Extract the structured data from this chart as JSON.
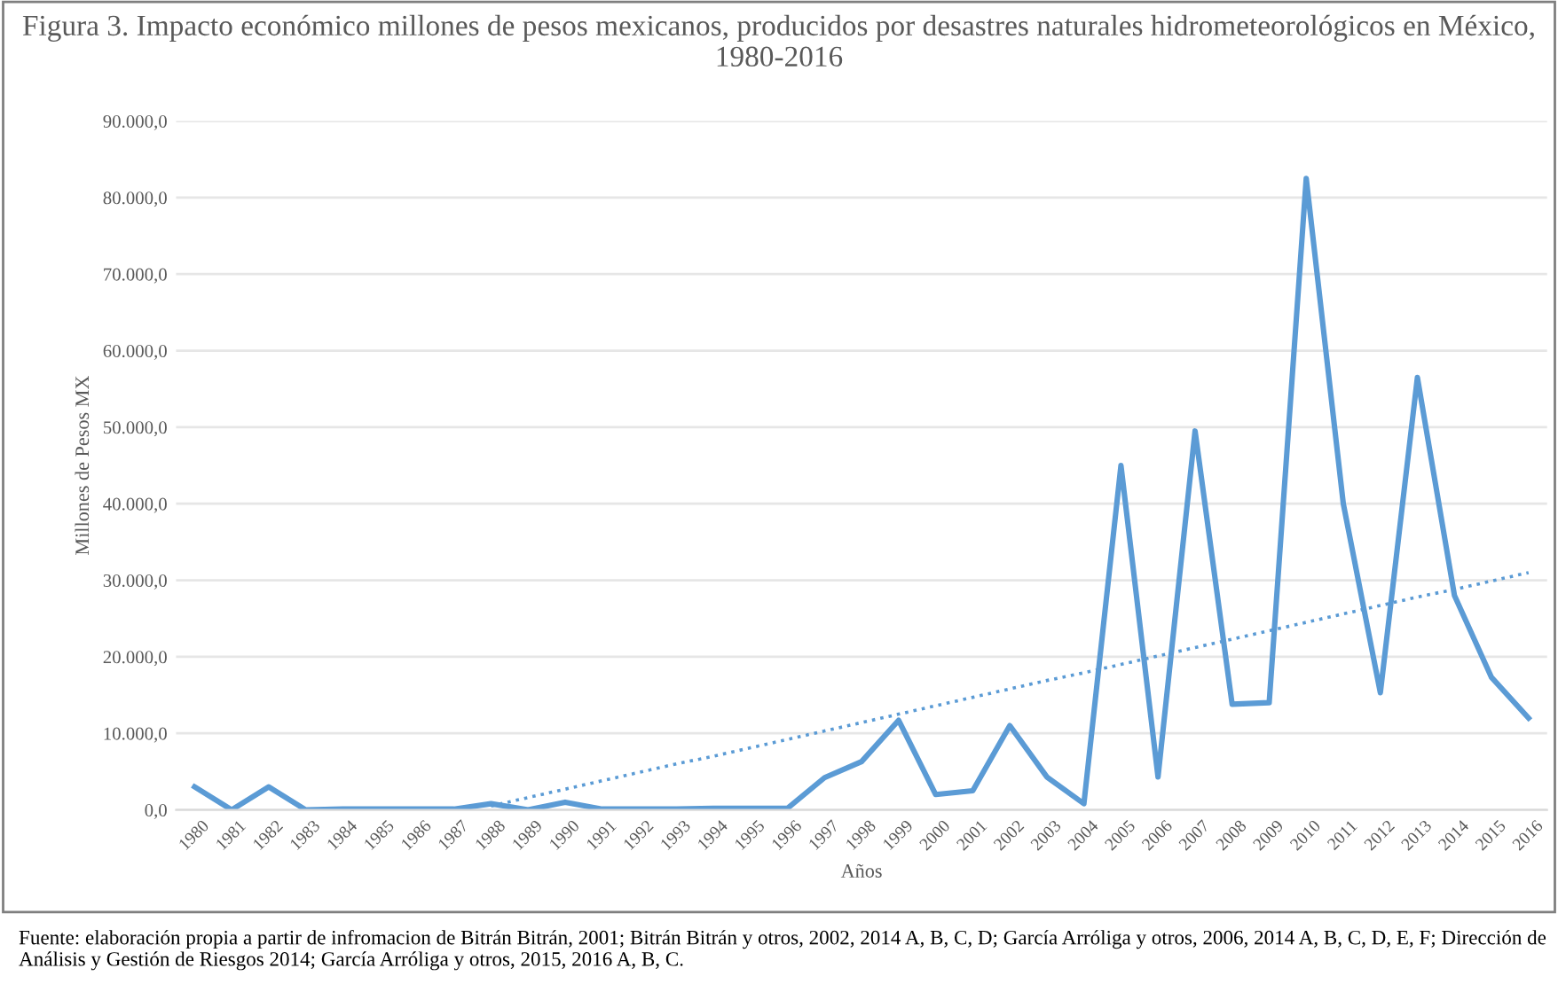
{
  "chart_data": {
    "type": "line",
    "title": "Figura 3. Impacto económico millones de pesos mexicanos, producidos por desastres naturales hidrometeorológicos en México, 1980-2016",
    "xlabel": "Años",
    "ylabel": "Millones de Pesos MX",
    "categories": [
      "1980",
      "1981",
      "1982",
      "1983",
      "1984",
      "1985",
      "1986",
      "1987",
      "1988",
      "1989",
      "1990",
      "1991",
      "1992",
      "1993",
      "1994",
      "1995",
      "1996",
      "1997",
      "1998",
      "1999",
      "2000",
      "2001",
      "2002",
      "2003",
      "2004",
      "2005",
      "2006",
      "2007",
      "2008",
      "2009",
      "2010",
      "2011",
      "2012",
      "2013",
      "2014",
      "2015",
      "2016"
    ],
    "series": [
      {
        "color": "#5b9bd5",
        "line_style": "solid",
        "values": [
          3000,
          0,
          3000,
          0,
          100,
          100,
          100,
          100,
          800,
          0,
          1000,
          100,
          100,
          100,
          200,
          200,
          200,
          4200,
          6300,
          11700,
          2000,
          2500,
          11000,
          4300,
          800,
          45000,
          4300,
          49500,
          13800,
          14000,
          82500,
          40000,
          15300,
          56500,
          28000,
          17300,
          12000
        ]
      },
      {
        "color": "#5b9bd5",
        "line_style": "dotted",
        "values": [
          null,
          null,
          null,
          null,
          null,
          null,
          null,
          null,
          500,
          1600,
          2700,
          3800,
          4900,
          6000,
          7000,
          8100,
          9200,
          10300,
          11400,
          12500,
          13600,
          14700,
          15800,
          16900,
          17900,
          19000,
          20100,
          21200,
          22300,
          23400,
          24500,
          25600,
          26700,
          27800,
          28800,
          29900,
          31000
        ]
      }
    ],
    "ylim": [
      0,
      90000
    ],
    "yticks": [
      {
        "value": 0,
        "label": "0,0"
      },
      {
        "value": 10000,
        "label": "10.000,0"
      },
      {
        "value": 20000,
        "label": "20.000,0"
      },
      {
        "value": 30000,
        "label": "30.000,0"
      },
      {
        "value": 40000,
        "label": "40.000,0"
      },
      {
        "value": 50000,
        "label": "50.000,0"
      },
      {
        "value": 60000,
        "label": "60.000,0"
      },
      {
        "value": 70000,
        "label": "70.000,0"
      },
      {
        "value": 80000,
        "label": "80.000,0"
      },
      {
        "value": 90000,
        "label": "90.000,0"
      }
    ],
    "grid": "y",
    "legend": false,
    "marker": "none",
    "annotations": [
      "Fuente: elaboración propia a partir de infromacion de Bitrán Bitrán, 2001; Bitrán Bitrán y otros, 2002, 2014 A, B, C, D; García Arróliga y otros, 2006, 2014 A, B, C, D, E, F; Dirección de Análisis y Gestión de Riesgos 2014; García Arróliga y otros, 2015, 2016 A, B, C."
    ]
  }
}
